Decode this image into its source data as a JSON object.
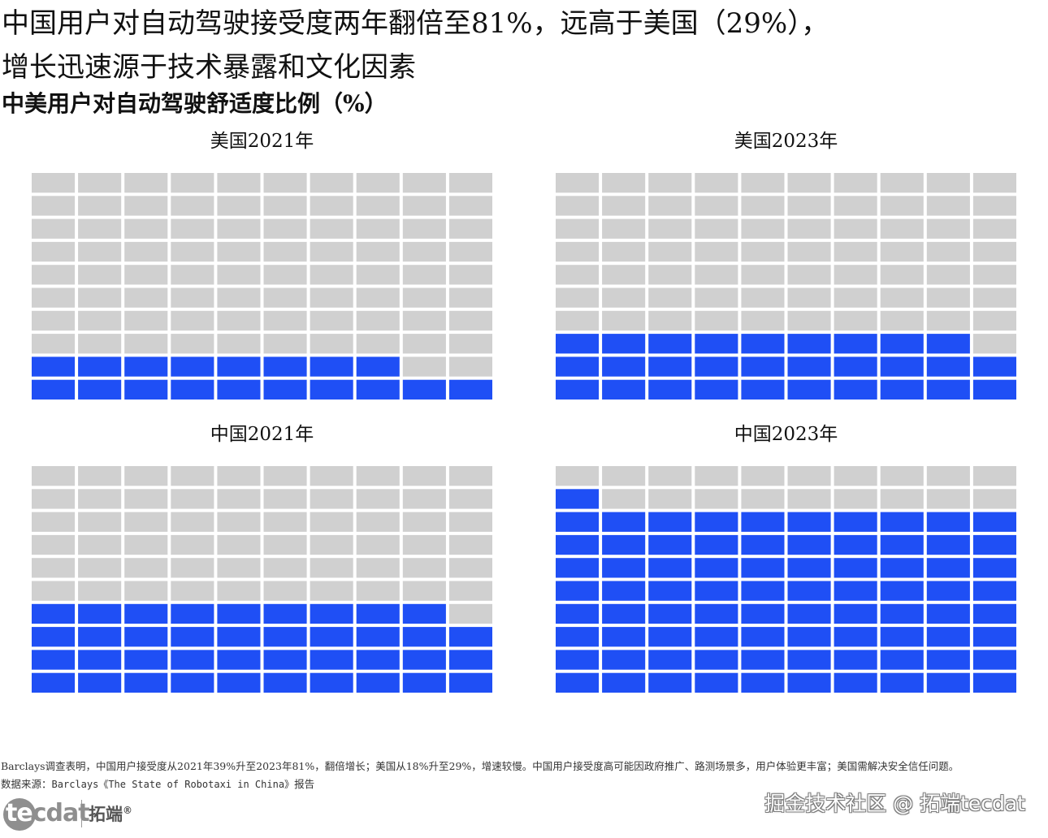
{
  "title": {
    "line1": "中国用户对自动驾驶接受度两年翻倍至81%，远高于美国（29%），",
    "line2": "增长迅速源于技术暴露和文化因素"
  },
  "subtitle": "中美用户对自动驾驶舒适度比例（%）",
  "colors": {
    "filled": "#1f4ff5",
    "empty": "#d0d0d0"
  },
  "chart_data": [
    {
      "type": "waffle",
      "title": "美国2021年",
      "value": 18,
      "total": 100,
      "rows": 10,
      "cols": 10
    },
    {
      "type": "waffle",
      "title": "美国2023年",
      "value": 29,
      "total": 100,
      "rows": 10,
      "cols": 10
    },
    {
      "type": "waffle",
      "title": "中国2021年",
      "value": 39,
      "total": 100,
      "rows": 10,
      "cols": 10
    },
    {
      "type": "waffle",
      "title": "中国2023年",
      "value": 81,
      "total": 100,
      "rows": 10,
      "cols": 10
    }
  ],
  "note": "Barclays调查表明，中国用户接受度从2021年39%升至2023年81%，翻倍增长；美国从18%升至29%，增速较慢。中国用户接受度高可能因政府推广、路测场景多，用户体验更丰富；美国需解决安全信任问题。",
  "source": {
    "label": "数据来源：",
    "text": "Barclays《The State of Robotaxi in China》",
    "suffix": "报告"
  },
  "logo": {
    "first": "te",
    "rest": "cdat",
    "cn": "拓端",
    "mark": "®"
  },
  "watermark": "掘金技术社区 @ 拓端tecdat"
}
